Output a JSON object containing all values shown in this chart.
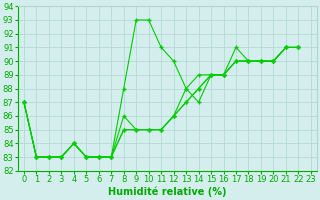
{
  "series": [
    [
      87,
      83,
      83,
      83,
      84,
      83,
      83,
      83,
      88,
      93,
      93,
      91,
      90,
      88,
      87,
      89,
      89,
      91,
      90,
      90,
      90,
      91,
      91
    ],
    [
      87,
      83,
      83,
      83,
      84,
      83,
      83,
      83,
      86,
      85,
      85,
      85,
      86,
      88,
      89,
      89,
      89,
      90,
      90,
      90,
      90,
      91,
      91
    ],
    [
      87,
      83,
      83,
      83,
      84,
      83,
      83,
      83,
      85,
      85,
      85,
      85,
      86,
      87,
      88,
      89,
      89,
      90,
      90,
      90,
      90,
      91,
      91
    ],
    [
      87,
      83,
      83,
      83,
      84,
      83,
      83,
      83,
      85,
      85,
      85,
      85,
      86,
      87,
      88,
      89,
      89,
      90,
      90,
      90,
      90,
      91,
      91
    ]
  ],
  "x": [
    0,
    1,
    2,
    3,
    4,
    5,
    6,
    7,
    8,
    9,
    10,
    11,
    12,
    13,
    14,
    15,
    16,
    17,
    18,
    19,
    20,
    21,
    22
  ],
  "line_color": "#00cc00",
  "marker": "+",
  "markersize": 3,
  "linewidth": 0.8,
  "xlabel": "Humidité relative (%)",
  "ylim": [
    82,
    94
  ],
  "yticks": [
    82,
    83,
    84,
    85,
    86,
    87,
    88,
    89,
    90,
    91,
    92,
    93,
    94
  ],
  "xticks": [
    0,
    1,
    2,
    3,
    4,
    5,
    6,
    7,
    8,
    9,
    10,
    11,
    12,
    13,
    14,
    15,
    16,
    17,
    18,
    19,
    20,
    21,
    22,
    23
  ],
  "bg_color": "#d4eeee",
  "grid_color": "#b0d4d4",
  "label_color": "#00aa00",
  "tick_color": "#00aa00",
  "xlabel_fontsize": 7,
  "tick_fontsize": 6
}
